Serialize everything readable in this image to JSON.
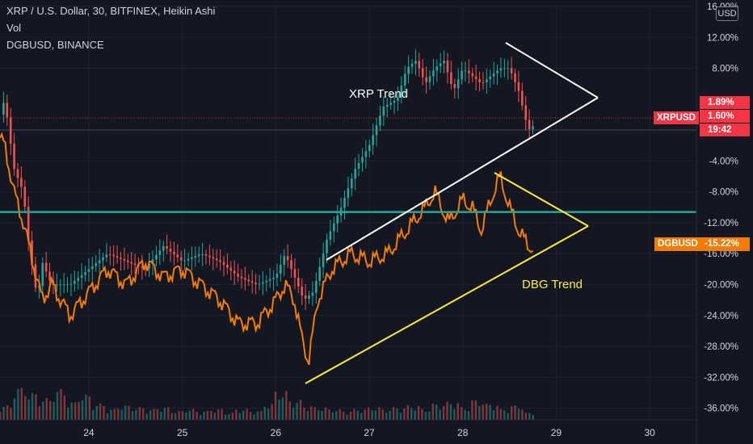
{
  "header": {
    "title": "XRP / U.S. Dollar, 30, BITFINEX, Heikin Ashi",
    "vol": "Vol",
    "comparison": "DGBUSD, BINANCE"
  },
  "currency_badge": "USD",
  "annotations": {
    "xrp_trend": "XRP Trend",
    "dbg_trend": "DBG Trend"
  },
  "price_tags": {
    "xrp_label": "XRPUSD",
    "xrp_change": "1.89%",
    "xrp_last": "1.60%",
    "xrp_countdown": "19:42",
    "dgb_label": "DGBUSD",
    "dgb_value": "-15.22%"
  },
  "colors": {
    "background": "#131722",
    "up_candle": "#26a69a",
    "down_candle": "#ef5350",
    "dgb_line": "#f57c00",
    "support_line": "#26a69a",
    "xrp_trend_lines": "#ffffff",
    "dbg_trend_lines": "#ffeb3b",
    "text": "#d1d4dc",
    "xrp_tag": "#f23645",
    "dgb_tag": "#f57c00",
    "dbg_annotation": "#ffeb3b"
  },
  "chart_data": {
    "type": "line",
    "y_axis_unit": "%",
    "y_ticks": [
      "16.00%",
      "12.00%",
      "8.00%",
      "-4.00%",
      "-8.00%",
      "-12.00%",
      "-16.00%",
      "-20.00%",
      "-24.00%",
      "-28.00%",
      "-32.00%",
      "-36.00%"
    ],
    "ylim": [
      -37.5,
      16
    ],
    "x_ticks": [
      "24",
      "25",
      "26",
      "27",
      "28",
      "29",
      "30"
    ],
    "xlim": [
      23.05,
      30.5
    ],
    "support_level": -10.6,
    "series": [
      {
        "name": "XRPUSD",
        "style": "heikin-ashi candles",
        "x": [
          23.05,
          23.1,
          23.2,
          23.3,
          23.35,
          23.45,
          23.5,
          23.6,
          23.8,
          24.0,
          24.2,
          24.4,
          24.6,
          24.8,
          25.0,
          25.2,
          25.4,
          25.6,
          25.8,
          26.0,
          26.1,
          26.2,
          26.3,
          26.4,
          26.55,
          26.7,
          26.85,
          27.0,
          27.15,
          27.3,
          27.4,
          27.5,
          27.6,
          27.7,
          27.8,
          27.9,
          28.0,
          28.1,
          28.2,
          28.3,
          28.4,
          28.5,
          28.6,
          28.7,
          28.75
        ],
        "y": [
          2,
          4,
          -5,
          -8,
          -14,
          -22,
          -17,
          -20,
          -20,
          -18,
          -16,
          -17,
          -18,
          -15,
          -17,
          -16,
          -17,
          -19,
          -20,
          -19,
          -16,
          -19,
          -22,
          -21,
          -14,
          -10,
          -5,
          -2,
          3,
          4,
          8,
          9,
          6,
          8,
          9,
          5,
          8,
          7,
          6,
          7,
          8,
          8,
          5,
          0,
          0.5
        ]
      },
      {
        "name": "DGBUSD",
        "x": [
          23.05,
          23.1,
          23.2,
          23.3,
          23.4,
          23.5,
          23.6,
          23.8,
          24.0,
          24.2,
          24.4,
          24.6,
          24.8,
          25.0,
          25.2,
          25.4,
          25.6,
          25.8,
          26.0,
          26.1,
          26.2,
          26.28,
          26.35,
          26.45,
          26.6,
          26.8,
          27.0,
          27.2,
          27.4,
          27.6,
          27.7,
          27.85,
          28.0,
          28.1,
          28.2,
          28.3,
          28.4,
          28.5,
          28.6,
          28.7,
          28.75
        ],
        "y": [
          -1,
          -2,
          -8,
          -12,
          -17,
          -22,
          -20,
          -24,
          -21,
          -18,
          -20,
          -17,
          -19,
          -18,
          -20,
          -22,
          -25,
          -25,
          -22,
          -20,
          -22,
          -27,
          -30,
          -22,
          -18,
          -16,
          -17,
          -16,
          -13,
          -10,
          -8,
          -12,
          -9,
          -10,
          -13,
          -9,
          -6,
          -10,
          -13,
          -15,
          -15.22
        ]
      }
    ],
    "volume": [
      0.4,
      0.9,
      0.75,
      0.6,
      0.85,
      0.5,
      0.7,
      0.45,
      0.3,
      0.4,
      0.35,
      0.3,
      0.35,
      0.25,
      0.3,
      0.25,
      0.3,
      0.2,
      0.3,
      0.25,
      0.45,
      0.8,
      0.55,
      0.4,
      0.35,
      0.3,
      0.25,
      0.3,
      0.35,
      0.3,
      0.35,
      0.4,
      0.3,
      0.45,
      0.5,
      0.35,
      0.55,
      0.45,
      0.3,
      0.4,
      0.2
    ]
  }
}
